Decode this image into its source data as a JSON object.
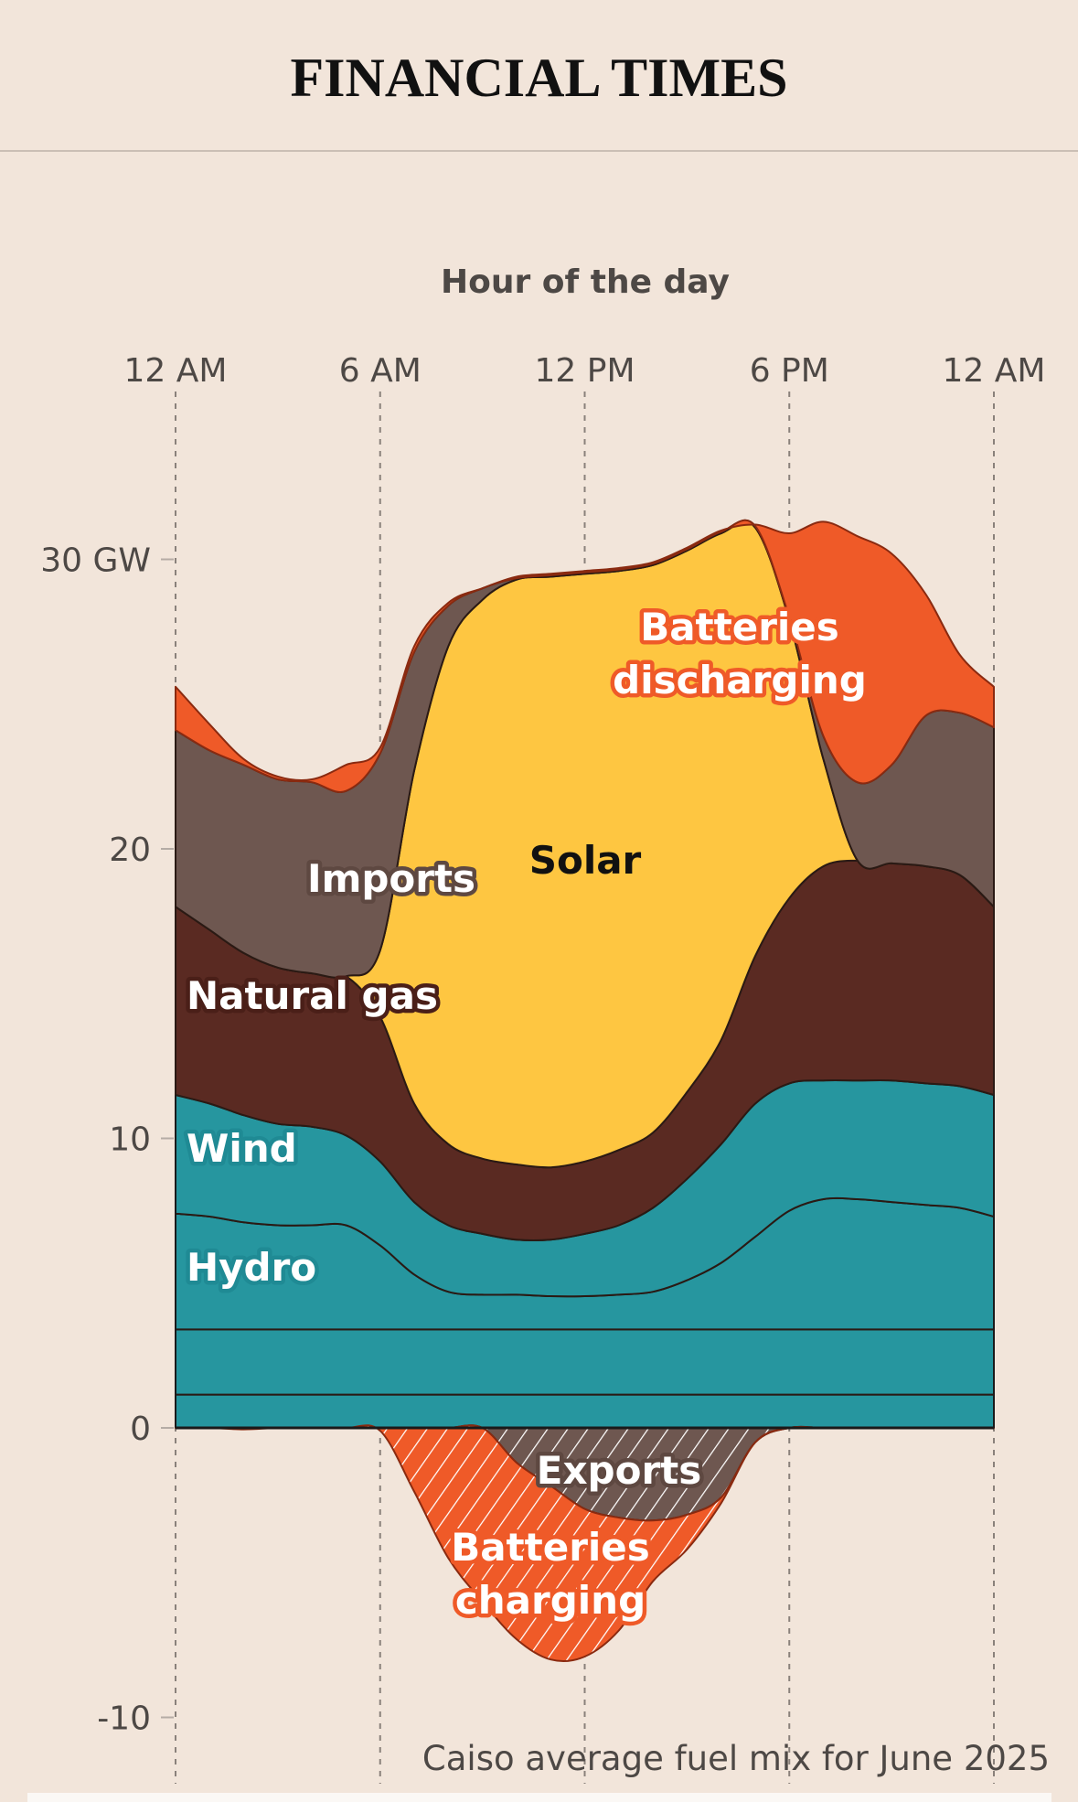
{
  "masthead": "FINANCIAL TIMES",
  "chart_data": {
    "type": "area",
    "title": "Hour of the day",
    "caption": "Caiso average fuel mix for June 2025",
    "x": [
      0,
      1,
      2,
      3,
      4,
      5,
      6,
      7,
      8,
      9,
      10,
      11,
      12,
      13,
      14,
      15,
      16,
      17,
      18,
      19,
      20,
      21,
      22,
      23,
      24
    ],
    "xticks": [
      {
        "value": 0,
        "label": "12 AM"
      },
      {
        "value": 6,
        "label": "6 AM"
      },
      {
        "value": 12,
        "label": "12 PM"
      },
      {
        "value": 18,
        "label": "6 PM"
      },
      {
        "value": 24,
        "label": "12 AM"
      }
    ],
    "yticks": [
      {
        "value": 30,
        "label": "30 GW"
      },
      {
        "value": 20,
        "label": "20"
      },
      {
        "value": 10,
        "label": "10"
      },
      {
        "value": 0,
        "label": "0"
      },
      {
        "value": -10,
        "label": "-10"
      }
    ],
    "ylim": [
      -11,
      34
    ],
    "xlim": [
      0,
      24
    ],
    "series": [
      {
        "label": null,
        "color": "#26969f",
        "values": [
          1.15,
          1.15,
          1.15,
          1.15,
          1.15,
          1.15,
          1.15,
          1.15,
          1.15,
          1.15,
          1.15,
          1.15,
          1.15,
          1.15,
          1.15,
          1.15,
          1.15,
          1.15,
          1.15,
          1.15,
          1.15,
          1.15,
          1.15,
          1.15,
          1.15
        ]
      },
      {
        "label": null,
        "color": "#26969f",
        "values": [
          2.25,
          2.25,
          2.25,
          2.25,
          2.25,
          2.25,
          2.25,
          2.25,
          2.25,
          2.25,
          2.25,
          2.25,
          2.25,
          2.25,
          2.25,
          2.25,
          2.25,
          2.25,
          2.25,
          2.25,
          2.25,
          2.25,
          2.25,
          2.25,
          2.25
        ]
      },
      {
        "label": "Hydro",
        "color": "#26969f",
        "values": [
          4.0,
          3.9,
          3.7,
          3.6,
          3.6,
          3.6,
          2.9,
          1.9,
          1.3,
          1.2,
          1.2,
          1.15,
          1.15,
          1.2,
          1.3,
          1.7,
          2.3,
          3.2,
          4.1,
          4.5,
          4.5,
          4.4,
          4.3,
          4.2,
          3.9
        ]
      },
      {
        "label": "Wind",
        "color": "#26969f",
        "values": [
          4.1,
          3.9,
          3.7,
          3.5,
          3.4,
          3.1,
          2.9,
          2.5,
          2.3,
          2.1,
          1.9,
          1.95,
          2.15,
          2.4,
          2.9,
          3.5,
          4.1,
          4.6,
          4.4,
          4.1,
          4.1,
          4.2,
          4.2,
          4.2,
          4.2
        ]
      },
      {
        "label": "Natural gas",
        "color": "#5a2a22",
        "values": [
          6.5,
          6.0,
          5.6,
          5.4,
          5.3,
          5.5,
          5.0,
          3.4,
          2.8,
          2.6,
          2.6,
          2.5,
          2.5,
          2.6,
          2.6,
          3.0,
          3.6,
          5.1,
          6.4,
          7.4,
          7.6,
          7.5,
          7.5,
          7.3,
          6.5
        ]
      },
      {
        "label": "Solar",
        "color": "#fec641",
        "values": [
          0,
          0,
          0,
          0,
          0,
          0,
          2.3,
          11.5,
          17.2,
          19.3,
          20.2,
          20.4,
          20.3,
          20.0,
          19.6,
          18.7,
          17.5,
          14.8,
          9.6,
          3.7,
          0,
          0,
          0,
          0,
          0
        ]
      },
      {
        "label": "Imports",
        "color": "#6e5750",
        "values": [
          6.1,
          6.2,
          6.5,
          6.5,
          6.6,
          6.4,
          6.8,
          4.1,
          1.4,
          0.4,
          0.05,
          0.05,
          0.05,
          0.05,
          0.05,
          0.05,
          0.05,
          0.05,
          0.1,
          0.8,
          2.7,
          3.4,
          5.2,
          5.6,
          6.2
        ]
      },
      {
        "label": "Batteries discharging",
        "color": "#ef5a28",
        "values": [
          1.5,
          0.9,
          0.2,
          0.1,
          0.1,
          0.9,
          0.2,
          0.2,
          0.1,
          0.0,
          0.05,
          0.05,
          0.05,
          0.05,
          0.05,
          0.05,
          0.05,
          0.05,
          2.9,
          7.4,
          8.5,
          7.3,
          4.2,
          2.0,
          1.4
        ]
      }
    ],
    "negative_series": [
      {
        "label": "Exports",
        "color": "#6e5750",
        "hatched": true,
        "values": [
          0,
          0,
          0,
          0,
          0,
          0,
          0,
          0,
          0,
          0,
          -1.2,
          -2.0,
          -2.8,
          -3.1,
          -3.2,
          -3.0,
          -2.4,
          -0.5,
          0,
          0,
          0,
          0,
          0,
          0,
          0
        ]
      },
      {
        "label": "Batteries charging",
        "color": "#ef5a28",
        "hatched": true,
        "values": [
          0,
          0,
          -0.05,
          0,
          0,
          0,
          -0.1,
          -2.2,
          -4.5,
          -6.0,
          -6.1,
          -6.0,
          -5.1,
          -3.9,
          -2.1,
          -1.2,
          -0.2,
          0,
          0,
          0,
          0,
          0,
          0,
          0,
          0
        ]
      }
    ]
  }
}
